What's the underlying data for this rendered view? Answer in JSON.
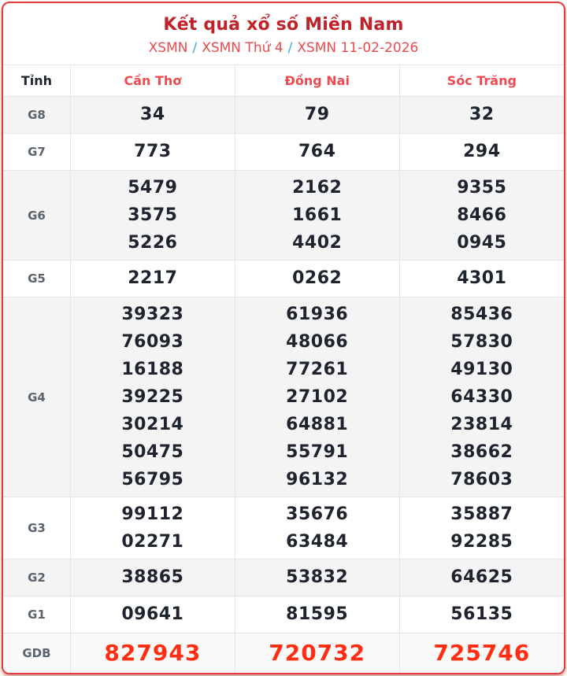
{
  "header": {
    "title": "Kết quả xổ số Miền Nam",
    "breadcrumb": [
      {
        "label": "XSMN"
      },
      {
        "label": "XSMN Thứ 4"
      },
      {
        "label": "XSMN 11-02-2026"
      }
    ],
    "separator": "/"
  },
  "table": {
    "columns": [
      "Tỉnh",
      "Cần Thơ",
      "Đồng Nai",
      "Sóc Trăng"
    ],
    "rows": [
      {
        "prize": "G8",
        "stripe": true,
        "values": [
          [
            "34"
          ],
          [
            "79"
          ],
          [
            "32"
          ]
        ]
      },
      {
        "prize": "G7",
        "stripe": false,
        "values": [
          [
            "773"
          ],
          [
            "764"
          ],
          [
            "294"
          ]
        ]
      },
      {
        "prize": "G6",
        "stripe": true,
        "values": [
          [
            "5479",
            "3575",
            "5226"
          ],
          [
            "2162",
            "1661",
            "4402"
          ],
          [
            "9355",
            "8466",
            "0945"
          ]
        ]
      },
      {
        "prize": "G5",
        "stripe": false,
        "values": [
          [
            "2217"
          ],
          [
            "0262"
          ],
          [
            "4301"
          ]
        ]
      },
      {
        "prize": "G4",
        "stripe": true,
        "values": [
          [
            "39323",
            "76093",
            "16188",
            "39225",
            "30214",
            "50475",
            "56795"
          ],
          [
            "61936",
            "48066",
            "77261",
            "27102",
            "64881",
            "55791",
            "96132"
          ],
          [
            "85436",
            "57830",
            "49130",
            "64330",
            "23814",
            "38662",
            "78603"
          ]
        ]
      },
      {
        "prize": "G3",
        "stripe": false,
        "values": [
          [
            "99112",
            "02271"
          ],
          [
            "35676",
            "63484"
          ],
          [
            "35887",
            "92285"
          ]
        ]
      },
      {
        "prize": "G2",
        "stripe": true,
        "values": [
          [
            "38865"
          ],
          [
            "53832"
          ],
          [
            "64625"
          ]
        ]
      },
      {
        "prize": "G1",
        "stripe": false,
        "values": [
          [
            "09641"
          ],
          [
            "81595"
          ],
          [
            "56135"
          ]
        ]
      },
      {
        "prize": "GDB",
        "stripe": false,
        "highlight": true,
        "values": [
          [
            "827943"
          ],
          [
            "720732"
          ],
          [
            "725746"
          ]
        ]
      }
    ]
  },
  "colors": {
    "card_border": "#e43b3c",
    "title_red": "#bf2329",
    "breadcrumb_red": "#e94b4f",
    "slash_blue": "#41a4dc",
    "province_red": "#ee4a50",
    "value_dark": "#1e242e",
    "prize_label_gray": "#5a646e",
    "stripe_gray": "#f4f4f4",
    "gdb_value_red": "#ff2e12"
  }
}
